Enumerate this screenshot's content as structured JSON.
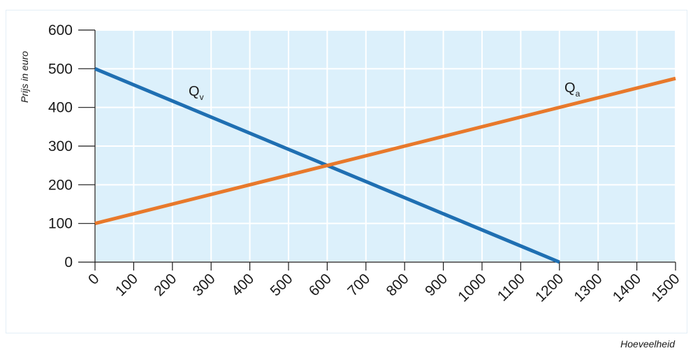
{
  "chart_data": {
    "type": "line",
    "title": "",
    "xlabel": "Hoeveelheid",
    "ylabel": "Prijs in euro",
    "xlim": [
      0,
      1500
    ],
    "ylim": [
      0,
      600
    ],
    "x_ticks": [
      0,
      100,
      200,
      300,
      400,
      500,
      600,
      700,
      800,
      900,
      1000,
      1100,
      1200,
      1300,
      1400,
      1500
    ],
    "y_ticks": [
      0,
      100,
      200,
      300,
      400,
      500,
      600
    ],
    "grid": true,
    "series": [
      {
        "name": "Qv",
        "label_main": "Q",
        "label_sub": "v",
        "color": "#1f6fb2",
        "x": [
          0,
          1200
        ],
        "y": [
          500,
          0
        ]
      },
      {
        "name": "Qa",
        "label_main": "Q",
        "label_sub": "a",
        "color": "#e8792b",
        "x": [
          0,
          1500
        ],
        "y": [
          100,
          475
        ]
      }
    ],
    "colors": {
      "plot_background": "#dcf0fb",
      "grid": "#ffffff",
      "axis": "#1a1a1a"
    }
  }
}
